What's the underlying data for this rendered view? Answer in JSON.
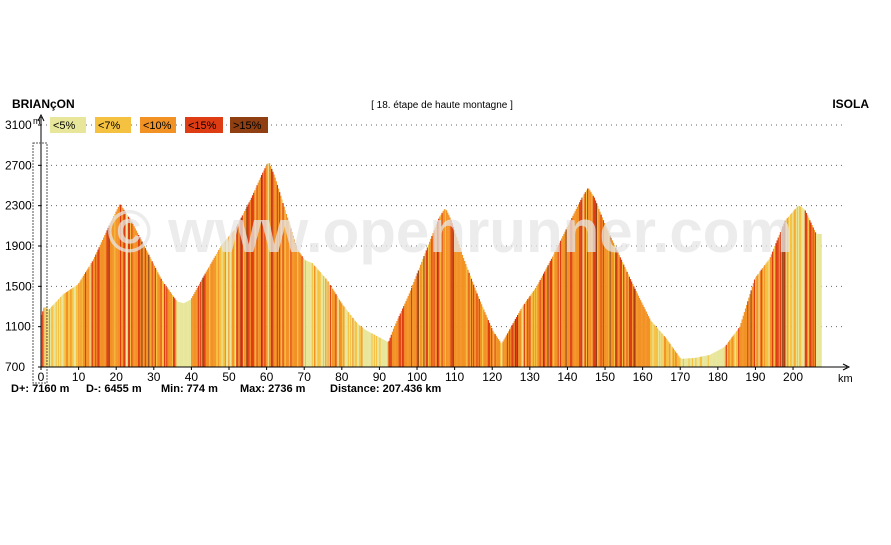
{
  "header": {
    "start": "BRIANçON",
    "end": "ISOLA",
    "stage_label": "[ 18. étape de haute montagne ]"
  },
  "legend": [
    {
      "label": "<5%",
      "color": "#e8e69a"
    },
    {
      "label": "<7%",
      "color": "#f5c141"
    },
    {
      "label": "<10%",
      "color": "#f39224"
    },
    {
      "label": ">15%",
      "color": "#8f3f12"
    }
  ],
  "legend_red": {
    "label": "<15%",
    "color": "#de3d14"
  },
  "watermark": "© www.openrunner.com",
  "stats": {
    "gain": "D+: 7160 m",
    "loss": "D-: 6455 m",
    "min": "Min: 774 m",
    "max": "Max: 2736 m",
    "distance": "Distance: 207.436 km"
  },
  "chart_data": {
    "type": "area",
    "title": "",
    "xlabel": "km",
    "ylabel": "m",
    "xlim": [
      0,
      207.436
    ],
    "ylim": [
      700,
      3100
    ],
    "x_ticks": [
      0,
      10,
      20,
      30,
      40,
      50,
      60,
      70,
      80,
      90,
      100,
      110,
      120,
      130,
      140,
      150,
      160,
      170,
      180,
      190,
      200
    ],
    "y_ticks": [
      700,
      1100,
      1500,
      1900,
      2300,
      2700,
      3100
    ],
    "grid": true,
    "legend_position": "top-left",
    "series": [
      {
        "x": [
          0,
          1,
          2,
          4,
          6,
          10,
          14,
          18,
          21,
          24,
          28,
          32,
          36,
          38,
          40,
          44,
          48,
          52,
          56,
          59,
          60.5,
          62,
          65,
          68,
          70,
          72,
          76,
          80,
          84,
          86,
          90,
          92.5,
          94,
          98,
          102,
          106,
          107.5,
          109,
          112,
          116,
          120,
          122.5,
          124,
          128,
          132,
          136,
          140,
          144,
          145.5,
          147,
          150,
          154,
          158,
          162,
          166,
          170,
          174,
          178,
          182,
          186,
          190,
          194,
          198,
          201.5,
          203,
          206
        ],
        "y": [
          1180,
          1300,
          1260,
          1340,
          1420,
          1520,
          1760,
          2080,
          2310,
          2140,
          1850,
          1560,
          1350,
          1330,
          1370,
          1640,
          1900,
          2080,
          2370,
          2620,
          2730,
          2590,
          2230,
          1870,
          1760,
          1730,
          1560,
          1320,
          1130,
          1070,
          990,
          940,
          1090,
          1420,
          1800,
          2180,
          2270,
          2150,
          1800,
          1410,
          1060,
          920,
          1020,
          1290,
          1500,
          1780,
          2080,
          2380,
          2470,
          2380,
          2100,
          1780,
          1460,
          1160,
          990,
          780,
          790,
          820,
          900,
          1100,
          1580,
          1780,
          2150,
          2300,
          2260,
          2020
        ]
      }
    ]
  }
}
